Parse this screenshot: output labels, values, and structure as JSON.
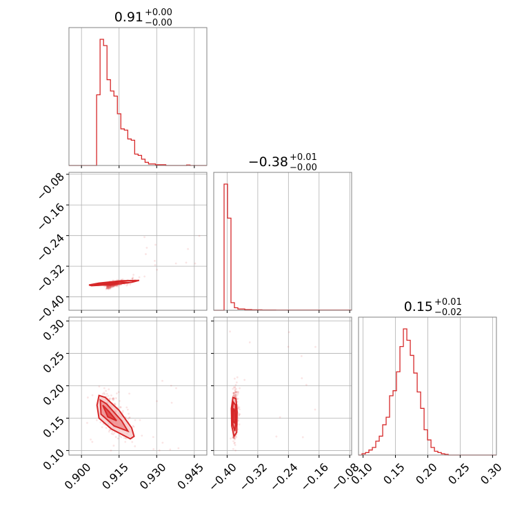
{
  "chart_data": {
    "type": "corner",
    "color": "#d62728",
    "parameters": [
      {
        "range": [
          0.895,
          0.95
        ],
        "ticks": [
          "0.900",
          "0.915",
          "0.930",
          "0.945"
        ],
        "tick_values": [
          0.9,
          0.915,
          0.93,
          0.945
        ]
      },
      {
        "range": [
          -0.435,
          -0.075
        ],
        "ticks": [
          "−0.40",
          "−0.32",
          "−0.24",
          "−0.16",
          "−0.08"
        ],
        "tick_values": [
          -0.4,
          -0.32,
          -0.24,
          -0.16,
          -0.08
        ]
      },
      {
        "range": [
          0.093,
          0.306
        ],
        "ticks": [
          "0.10",
          "0.15",
          "0.20",
          "0.25",
          "0.30"
        ],
        "tick_values": [
          0.1,
          0.15,
          0.2,
          0.25,
          0.3
        ]
      }
    ],
    "titles": [
      {
        "value": "0.91",
        "plus": "+0.00",
        "minus": "−0.00"
      },
      {
        "value": "−0.38",
        "plus": "+0.01",
        "minus": "−0.00"
      },
      {
        "value": "0.15",
        "plus": "+0.01",
        "minus": "−0.02"
      }
    ],
    "histograms": [
      {
        "bin_start": 0.895,
        "bin_width": 0.00138,
        "counts": [
          0,
          0,
          0,
          0,
          0,
          0,
          0,
          0,
          0.56,
          1.0,
          0.95,
          0.68,
          0.59,
          0.55,
          0.41,
          0.29,
          0.28,
          0.21,
          0.2,
          0.09,
          0.08,
          0.05,
          0.025,
          0.012,
          0.012,
          0.006,
          0.006,
          0.006,
          0,
          0,
          0,
          0,
          0,
          0,
          0.004,
          0,
          0,
          0,
          0,
          0,
          0
        ]
      },
      {
        "bin_start": -0.435,
        "bin_width": 0.009,
        "counts": [
          0,
          0,
          0,
          1.0,
          0.73,
          0.06,
          0.02,
          0.01,
          0.01,
          0.005,
          0.005,
          0.003,
          0.003,
          0.003,
          0.002,
          0.002,
          0.002,
          0.002,
          0.001,
          0.001,
          0.001,
          0.001,
          0.001,
          0.001,
          0.001,
          0.001,
          0.001,
          0.001,
          0.001,
          0.001,
          0.001,
          0.001,
          0.001,
          0.001,
          0.001,
          0.001,
          0.001,
          0.001,
          0.001,
          0.001
        ]
      },
      {
        "bin_start": 0.093,
        "bin_width": 0.00533,
        "counts": [
          0,
          0.01,
          0.02,
          0.04,
          0.06,
          0.11,
          0.15,
          0.24,
          0.3,
          0.47,
          0.51,
          0.66,
          0.86,
          1.0,
          0.91,
          0.79,
          0.65,
          0.5,
          0.37,
          0.2,
          0.12,
          0.06,
          0.03,
          0.02,
          0.01,
          0.005,
          0,
          0,
          0,
          0,
          0,
          0,
          0,
          0,
          0,
          0,
          0,
          0,
          0,
          0
        ]
      }
    ],
    "contour_levels": [
      "outer",
      "mid",
      "inner"
    ],
    "grid": true
  }
}
